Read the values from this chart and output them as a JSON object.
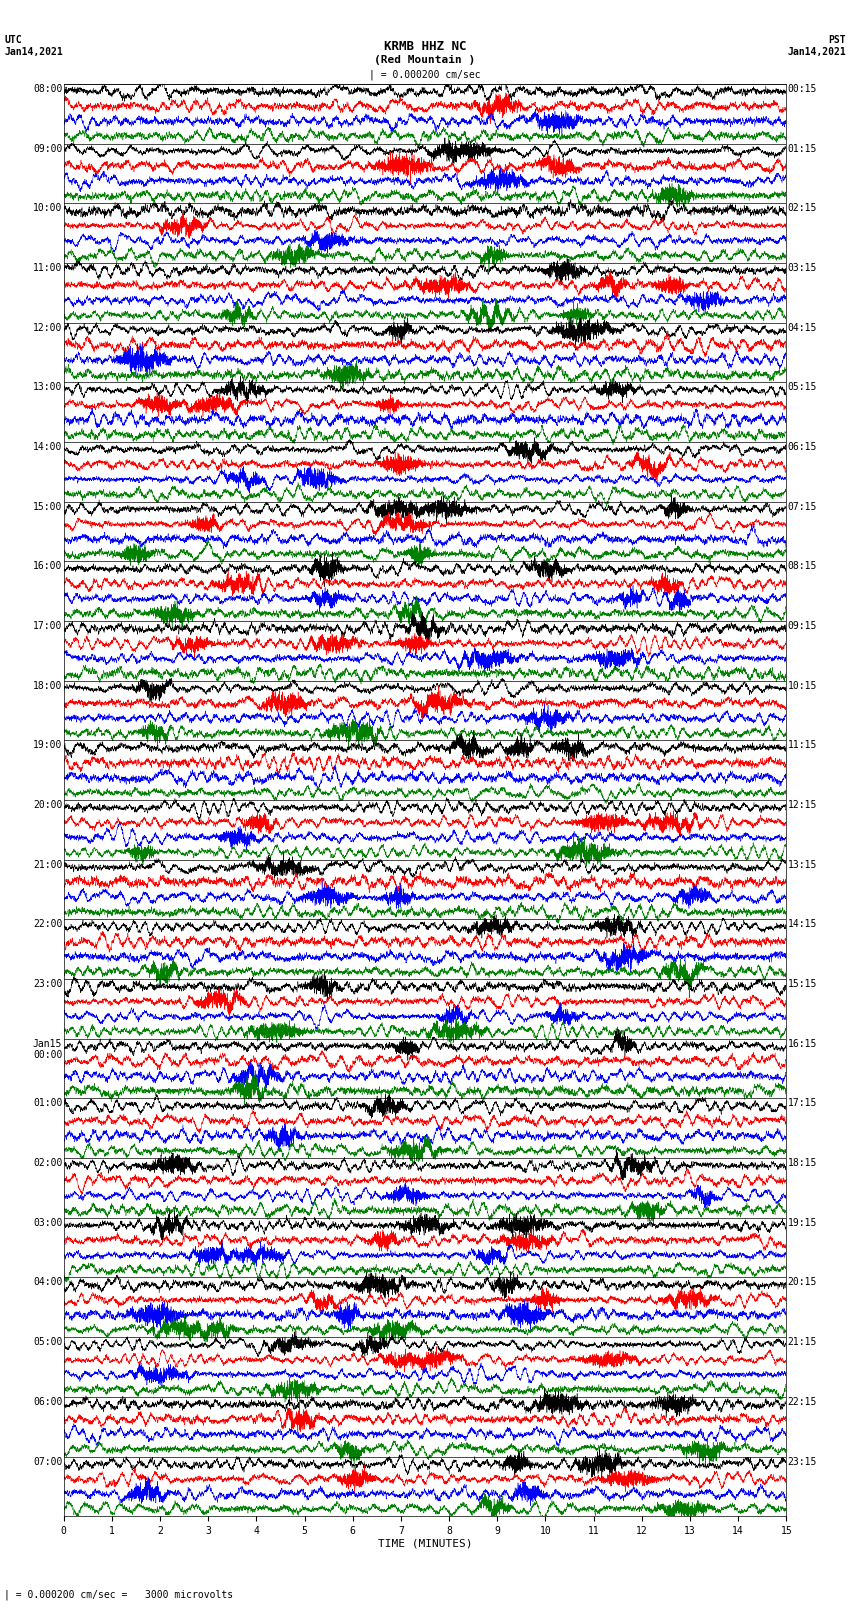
{
  "title_line1": "KRMB HHZ NC",
  "title_line2": "(Red Mountain )",
  "scale_text": "| = 0.000200 cm/sec",
  "bottom_scale_text": "| = 0.000200 cm/sec =   3000 microvolts",
  "xlabel": "TIME (MINUTES)",
  "left_header": "UTC\nJan14,2021",
  "right_header": "PST\nJan14,2021",
  "left_times_utc": [
    "08:00",
    "09:00",
    "10:00",
    "11:00",
    "12:00",
    "13:00",
    "14:00",
    "15:00",
    "16:00",
    "17:00",
    "18:00",
    "19:00",
    "20:00",
    "21:00",
    "22:00",
    "23:00",
    "Jan15\n00:00",
    "01:00",
    "02:00",
    "03:00",
    "04:00",
    "05:00",
    "06:00",
    "07:00"
  ],
  "right_times_pst": [
    "00:15",
    "01:15",
    "02:15",
    "03:15",
    "04:15",
    "05:15",
    "06:15",
    "07:15",
    "08:15",
    "09:15",
    "10:15",
    "11:15",
    "12:15",
    "13:15",
    "14:15",
    "15:15",
    "16:15",
    "17:15",
    "18:15",
    "19:15",
    "20:15",
    "21:15",
    "22:15",
    "23:15"
  ],
  "num_rows": 24,
  "traces_per_row": 4,
  "minutes_per_row": 15,
  "trace_colors": [
    "black",
    "red",
    "blue",
    "green"
  ],
  "bg_color": "white",
  "fig_width": 8.5,
  "fig_height": 16.13,
  "dpi": 100,
  "xticks": [
    0,
    1,
    2,
    3,
    4,
    5,
    6,
    7,
    8,
    9,
    10,
    11,
    12,
    13,
    14,
    15
  ],
  "xlim": [
    0,
    15
  ],
  "font_size_title": 9,
  "font_size_labels": 7,
  "font_size_ticks": 7,
  "font_size_header": 7,
  "noise_seed": 42
}
